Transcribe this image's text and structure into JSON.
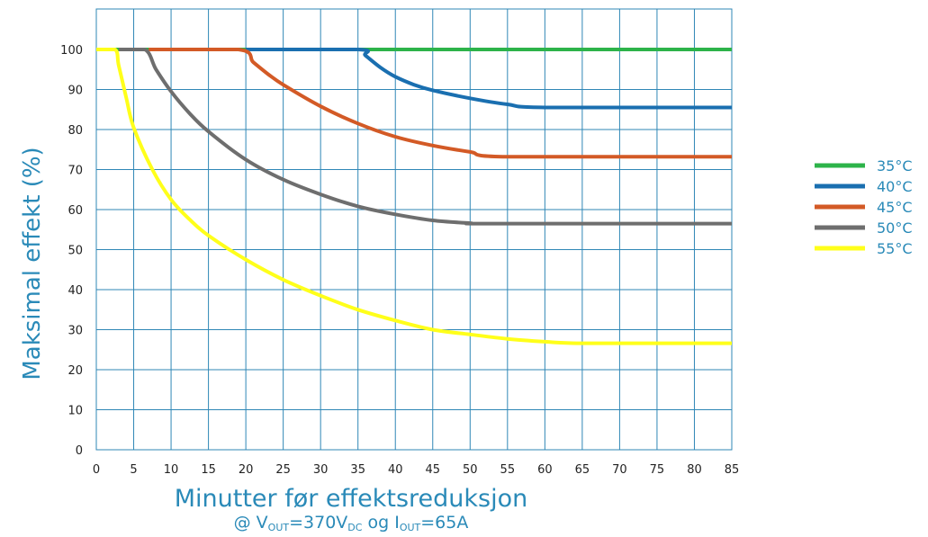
{
  "chart_data": {
    "type": "line",
    "xlabel": "Minutter før effektsreduksjon",
    "ylabel": "Maksimal effekt (%)",
    "subtitle": {
      "prefix": "@ V",
      "sub1": "OUT",
      "mid1": "=370V",
      "sub2": "DC",
      "mid2": " og I",
      "sub3": "OUT",
      "suffix": "=65A"
    },
    "xlim": [
      0,
      85
    ],
    "ylim": [
      0,
      105
    ],
    "xticks": [
      0,
      5,
      10,
      15,
      20,
      25,
      30,
      35,
      40,
      45,
      50,
      55,
      60,
      65,
      70,
      75,
      80,
      85
    ],
    "yticks": [
      0,
      10,
      20,
      30,
      40,
      50,
      60,
      70,
      80,
      90,
      100
    ],
    "grid": true,
    "legend_position": "right",
    "series": [
      {
        "name": "35°C",
        "color": "#2db34a",
        "x": [
          0,
          85
        ],
        "y": [
          100,
          100
        ]
      },
      {
        "name": "40°C",
        "color": "#1a6fb0",
        "x": [
          20,
          35,
          36,
          38,
          40,
          42.5,
          45,
          50,
          55,
          60,
          85
        ],
        "y": [
          100,
          100,
          98.5,
          95.5,
          93.2,
          91.2,
          89.8,
          87.8,
          86.3,
          85.5,
          85.5
        ]
      },
      {
        "name": "45°C",
        "color": "#d35a26",
        "x": [
          7,
          19,
          21,
          23,
          25,
          30,
          35,
          40,
          45,
          50,
          55,
          85
        ],
        "y": [
          100,
          100,
          96.8,
          93.8,
          91.2,
          85.8,
          81.5,
          78.2,
          76,
          74.4,
          73.2,
          73.2
        ]
      },
      {
        "name": "50°C",
        "color": "#6e6e6e",
        "x": [
          3,
          6.5,
          8,
          10,
          12.5,
          15,
          20,
          25,
          30,
          35,
          40,
          45,
          50,
          52.5,
          85
        ],
        "y": [
          100,
          100,
          95,
          89.5,
          84,
          79.5,
          72.5,
          67.5,
          63.8,
          60.8,
          58.8,
          57.3,
          56.6,
          56.5,
          56.5
        ]
      },
      {
        "name": "55°C",
        "color": "#ffff1a",
        "x": [
          0,
          2.5,
          3,
          4,
          5,
          7.5,
          10,
          12.5,
          15,
          20,
          25,
          30,
          35,
          40,
          45,
          50,
          55,
          60,
          65,
          85
        ],
        "y": [
          100,
          100,
          96,
          88,
          80.5,
          70,
          62.5,
          57.5,
          53.5,
          47.5,
          42.5,
          38.5,
          35,
          32.3,
          30,
          28.8,
          27.7,
          27,
          26.6,
          26.6
        ]
      }
    ]
  }
}
